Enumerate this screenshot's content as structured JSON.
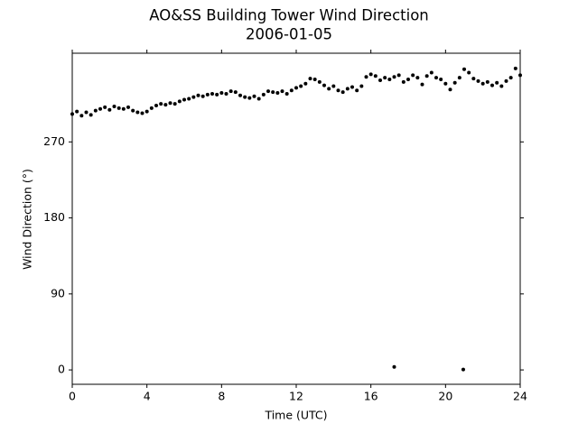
{
  "chart_data": {
    "type": "scatter",
    "title": "AO&SS Building Tower Wind Direction",
    "subtitle": "2006-01-05",
    "xlabel": "Time (UTC)",
    "ylabel": "Wind Direction (°)",
    "color": "#000000",
    "xlim": [
      0,
      24
    ],
    "xticks": [
      0,
      4,
      8,
      12,
      16,
      20,
      24
    ],
    "ylim": [
      -17,
      375
    ],
    "yticks": [
      0,
      90,
      180,
      270
    ],
    "x": [
      0,
      0.25,
      0.5,
      0.75,
      1,
      1.25,
      1.5,
      1.75,
      2,
      2.25,
      2.5,
      2.75,
      3,
      3.25,
      3.5,
      3.75,
      4,
      4.25,
      4.5,
      4.75,
      5,
      5.25,
      5.5,
      5.75,
      6,
      6.25,
      6.5,
      6.75,
      7,
      7.25,
      7.5,
      7.75,
      8,
      8.25,
      8.5,
      8.75,
      9,
      9.25,
      9.5,
      9.75,
      10,
      10.25,
      10.5,
      10.75,
      11,
      11.25,
      11.5,
      11.75,
      12,
      12.25,
      12.5,
      12.75,
      13,
      13.25,
      13.5,
      13.75,
      14,
      14.25,
      14.5,
      14.75,
      15,
      15.25,
      15.5,
      15.75,
      16,
      16.25,
      16.5,
      16.75,
      17,
      17.25,
      17.5,
      17.75,
      18,
      18.25,
      18.5,
      18.75,
      19,
      19.25,
      19.5,
      19.75,
      20,
      20.25,
      20.5,
      20.75,
      21,
      21.25,
      21.5,
      21.75,
      22,
      22.25,
      22.5,
      22.75,
      23,
      23.25,
      23.5,
      23.75,
      24,
      17.25,
      20.95
    ],
    "values": [
      303,
      306,
      301,
      305,
      302,
      307,
      309,
      311,
      308,
      312,
      310,
      309,
      311,
      307,
      305,
      304,
      306,
      310,
      313,
      315,
      314,
      316,
      315,
      318,
      320,
      321,
      323,
      325,
      324,
      326,
      327,
      326,
      328,
      327,
      330,
      329,
      325,
      323,
      322,
      324,
      321,
      326,
      330,
      329,
      328,
      330,
      327,
      331,
      334,
      336,
      339,
      345,
      344,
      341,
      337,
      333,
      336,
      331,
      329,
      333,
      335,
      331,
      336,
      347,
      350,
      348,
      343,
      346,
      344,
      347,
      349,
      341,
      344,
      349,
      346,
      338,
      348,
      352,
      346,
      344,
      339,
      332,
      340,
      346,
      356,
      352,
      345,
      342,
      339,
      341,
      337,
      340,
      336,
      342,
      346,
      357,
      349,
      3.5,
      0.5
    ]
  }
}
